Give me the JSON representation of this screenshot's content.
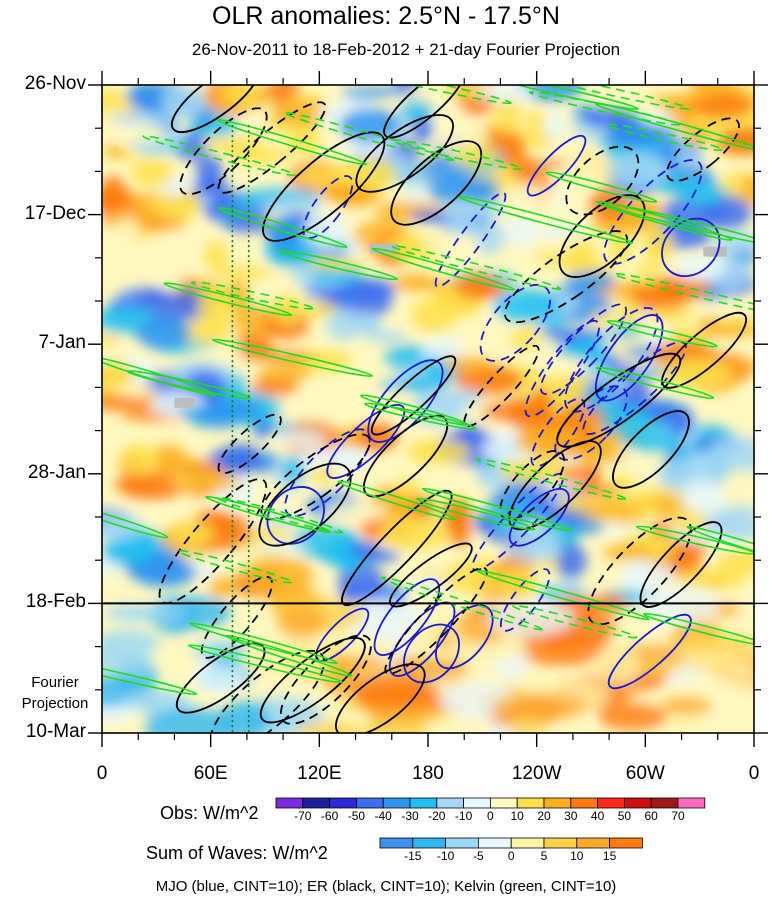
{
  "chart_data": {
    "type": "heatmap",
    "title": "OLR anomalies: 2.5°N - 17.5°N",
    "subtitle": "26-Nov-2011 to 18-Feb-2012 + 21-day Fourier Projection",
    "xlabel": "",
    "ylabel": "",
    "x_tick_labels": [
      "0",
      "60E",
      "120E",
      "180",
      "120W",
      "60W",
      "0"
    ],
    "y_tick_labels": [
      "26-Nov",
      "17-Dec",
      "7-Jan",
      "28-Jan",
      "18-Feb",
      "10-Mar"
    ],
    "x_range_deg_east": [
      0,
      360
    ],
    "y_range_days": [
      0,
      105
    ],
    "projection_start_label": "18-Feb",
    "fourier_label": "Fourier Projection",
    "obs_colorbar": {
      "label": "Obs: W/m^2",
      "levels": [
        -70,
        -60,
        -50,
        -40,
        -30,
        -20,
        -10,
        0,
        10,
        20,
        30,
        40,
        50,
        60,
        70
      ],
      "colors": [
        "#7d2be0",
        "#1f1f9e",
        "#2a2ad6",
        "#3d6ef0",
        "#2f95f0",
        "#1fc0f0",
        "#a6d8f5",
        "#e8f8fc",
        "#fff8c0",
        "#fde04a",
        "#fcb020",
        "#fc7a10",
        "#ff2a1a",
        "#cc1010",
        "#a01818",
        "#ff6ac0"
      ]
    },
    "wave_colorbar": {
      "label": "Sum of Waves: W/m^2",
      "levels": [
        -15,
        -10,
        -5,
        0,
        5,
        10,
        15
      ],
      "colors": [
        "#3d8ff0",
        "#2fb6f0",
        "#9bd8f5",
        "#e8f8fc",
        "#fff3a8",
        "#fdd24a",
        "#fcaa30",
        "#fc7a10"
      ]
    },
    "contour_legend": "MJO (blue, CINT=10); ER (black, CINT=10); Kelvin (green, CINT=10)",
    "series": [
      {
        "name": "MJO",
        "color": "#1a1ad0",
        "cint": 10
      },
      {
        "name": "ER",
        "color": "#000000",
        "cint": 10
      },
      {
        "name": "Kelvin",
        "color": "#1fdc1f",
        "cint": 10
      }
    ]
  }
}
